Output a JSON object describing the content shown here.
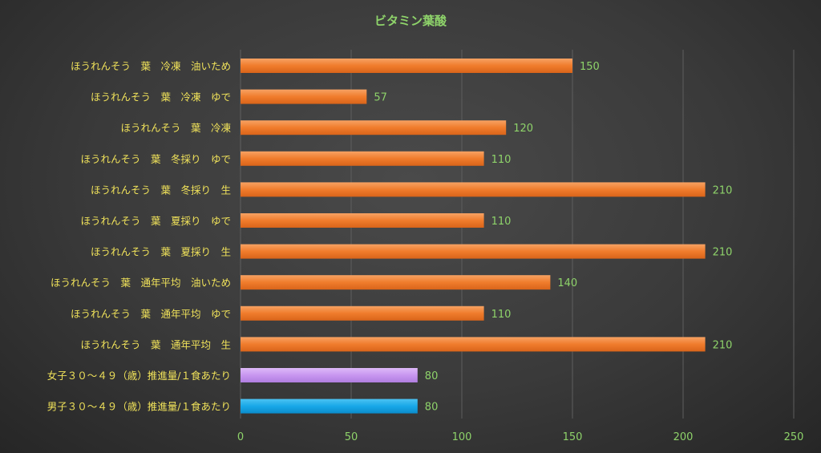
{
  "chart_data": {
    "type": "bar",
    "orientation": "horizontal",
    "title": "ビタミン葉酸",
    "categories": [
      "ほうれんそう　葉　冷凍　油いため",
      "ほうれんそう　葉　冷凍　ゆで",
      "ほうれんそう　葉　冷凍",
      "ほうれんそう　葉　冬採り　ゆで",
      "ほうれんそう　葉　冬採り　生",
      "ほうれんそう　葉　夏採り　ゆで",
      "ほうれんそう　葉　夏採り　生",
      "ほうれんそう　葉　通年平均　油いため",
      "ほうれんそう　葉　通年平均　ゆで",
      "ほうれんそう　葉　通年平均　生",
      "女子３０～４９（歳）推進量/１食あたり",
      "男子３０～４９（歳）推進量/１食あたり"
    ],
    "values": [
      150,
      57,
      120,
      110,
      210,
      110,
      210,
      140,
      110,
      210,
      80,
      80
    ],
    "bar_colors": [
      "#f07c2c",
      "#f07c2c",
      "#f07c2c",
      "#f07c2c",
      "#f07c2c",
      "#f07c2c",
      "#f07c2c",
      "#f07c2c",
      "#f07c2c",
      "#f07c2c",
      "#c896f0",
      "#18a8e8"
    ],
    "xlim": [
      0,
      250
    ],
    "xticks": [
      0,
      50,
      100,
      150,
      200,
      250
    ],
    "grid": true,
    "legend": "none",
    "colors": {
      "title": "#8ed36a",
      "category_label": "#f0e25a",
      "value_label": "#8ed36a",
      "tick_label": "#8ed36a",
      "gridline": "#5e5e5e"
    }
  }
}
